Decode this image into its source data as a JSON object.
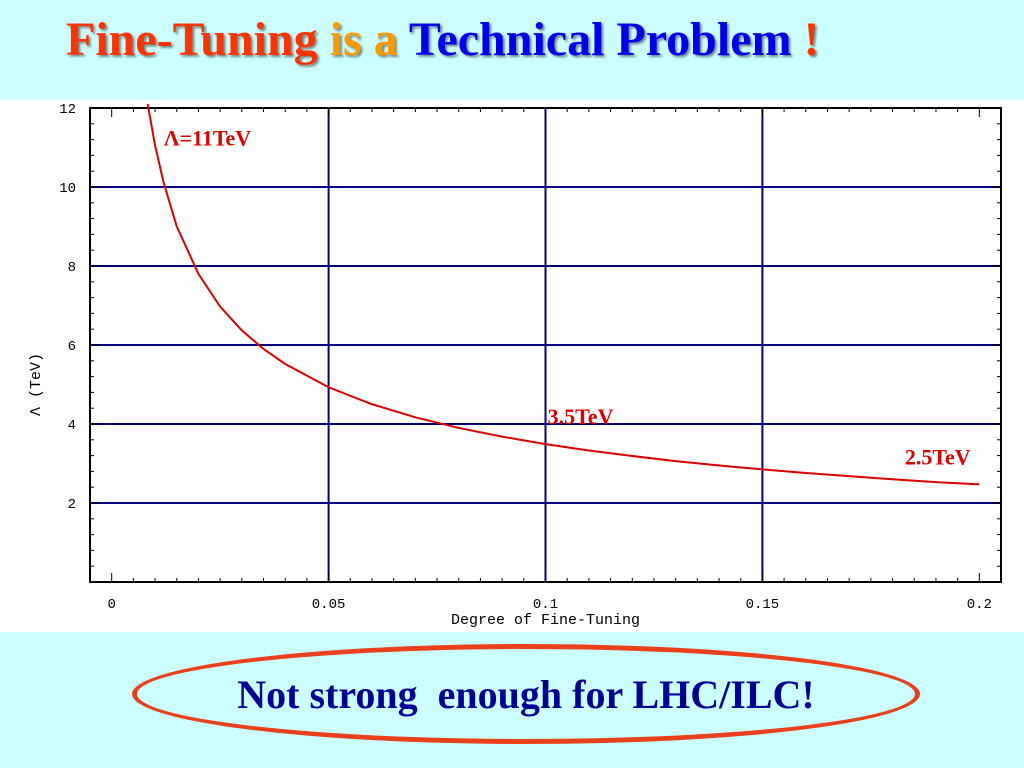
{
  "title": {
    "parts": [
      {
        "text": "Fine-Tuning ",
        "color": "#ff3300"
      },
      {
        "text": "is a ",
        "color": "#ff9900"
      },
      {
        "text": "Technical Problem ",
        "color": "#0000ee"
      },
      {
        "text": "!",
        "color": "#ff3300"
      }
    ]
  },
  "chart_data": {
    "type": "line",
    "xlabel": "Degree of Fine-Tuning",
    "ylabel": "Λ (TeV)",
    "xlim": [
      -0.005,
      0.205
    ],
    "ylim": [
      0,
      12
    ],
    "xticks": [
      0,
      0.05,
      0.1,
      0.15,
      0.2
    ],
    "xtick_labels": [
      "0",
      "0.05",
      "0.1",
      "0.15",
      "0.2"
    ],
    "yticks": [
      2,
      4,
      6,
      8,
      10,
      12
    ],
    "ytick_labels": [
      "2",
      "4",
      "6",
      "8",
      "10",
      "12"
    ],
    "grid": true,
    "grid_x": [
      0.05,
      0.1,
      0.15
    ],
    "grid_y": [
      2,
      4,
      6,
      8,
      10
    ],
    "series": [
      {
        "color": "#dd0000",
        "x": [
          0.0083,
          0.01,
          0.012,
          0.015,
          0.02,
          0.025,
          0.03,
          0.035,
          0.04,
          0.05,
          0.06,
          0.07,
          0.08,
          0.09,
          0.1,
          0.11,
          0.12,
          0.13,
          0.14,
          0.15,
          0.16,
          0.17,
          0.18,
          0.19,
          0.2
        ],
        "y": [
          12.1,
          11.05,
          10.1,
          9.0,
          7.8,
          6.97,
          6.37,
          5.9,
          5.52,
          4.93,
          4.5,
          4.17,
          3.9,
          3.68,
          3.49,
          3.33,
          3.19,
          3.06,
          2.95,
          2.85,
          2.76,
          2.68,
          2.6,
          2.53,
          2.47
        ]
      }
    ],
    "annotations": [
      {
        "text": "Λ=11TeV",
        "x": 0.012,
        "y": 11.05,
        "color": "#dd0000",
        "anchor": "start"
      },
      {
        "text": "3.5TeV",
        "x": 0.1005,
        "y": 4.0,
        "color": "#dd0000",
        "anchor": "start"
      },
      {
        "text": "2.5TeV",
        "x": 0.198,
        "y": 2.98,
        "color": "#dd0000",
        "anchor": "end"
      }
    ]
  },
  "callout": {
    "text": "Not strong  enough for LHC/ILC!",
    "text_color": "#000099",
    "border_color": "#e8401a"
  }
}
